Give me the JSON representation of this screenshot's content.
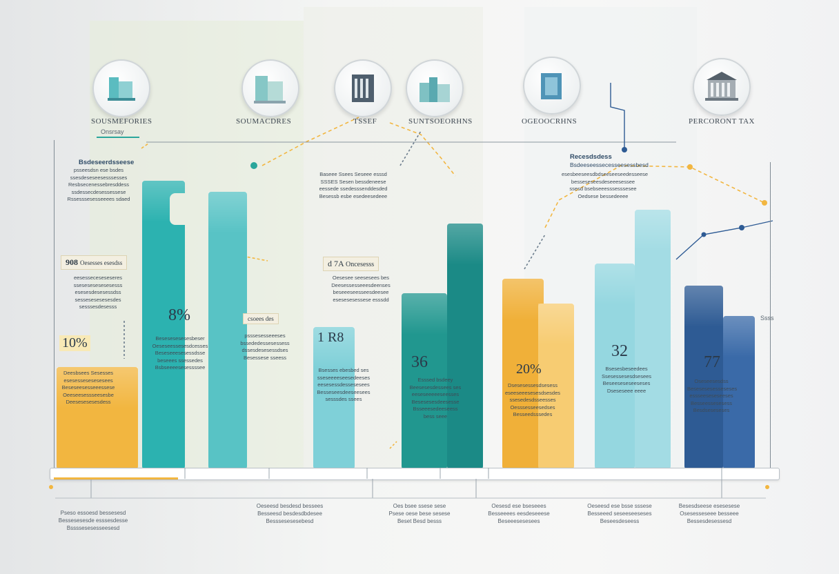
{
  "chart_data": {
    "type": "bar",
    "title": "",
    "categories": [
      "SOUSMEFORIES",
      "SOUMACDRES",
      "TSSEF",
      "SUNTSOEORHNS",
      "OGEOOCRHNS",
      "PERCORONT TAX"
    ],
    "series": [
      {
        "color": "#f2b640",
        "values": [
          148,
          0,
          0,
          0,
          0,
          0
        ]
      },
      {
        "color": "#2cb2b0",
        "values": [
          418,
          0,
          0,
          0,
          0,
          0
        ]
      },
      {
        "color": "#58c3c5",
        "values": [
          402,
          0,
          0,
          0,
          0,
          0
        ]
      },
      {
        "color": "#7fd0d8",
        "values": [
          0,
          0,
          206,
          0,
          0,
          0
        ]
      },
      {
        "color": "#8fd4dd",
        "values": [
          0,
          0,
          0,
          0,
          0,
          0
        ]
      },
      {
        "color": "#21978f",
        "values": [
          0,
          0,
          0,
          255,
          0,
          0
        ]
      },
      {
        "color": "#1b8a86",
        "values": [
          0,
          0,
          0,
          356,
          0,
          0
        ]
      },
      {
        "color": "#f0b039",
        "values": [
          0,
          0,
          0,
          0,
          276,
          0
        ]
      },
      {
        "color": "#f7cc72",
        "values": [
          0,
          0,
          0,
          0,
          240,
          0
        ]
      },
      {
        "color": "#95d7e0",
        "values": [
          0,
          0,
          0,
          0,
          298,
          0
        ]
      },
      {
        "color": "#a3dce4",
        "values": [
          0,
          0,
          0,
          0,
          376,
          0
        ]
      },
      {
        "color": "#2e5b94",
        "values": [
          0,
          0,
          0,
          0,
          266,
          0
        ]
      },
      {
        "color": "#3a6aa8",
        "values": [
          0,
          0,
          0,
          0,
          222,
          0
        ]
      }
    ],
    "value_labels": [
      "10%",
      "8%",
      "1 R8",
      "36",
      "20%",
      "32",
      "77"
    ],
    "tags": [
      "908",
      "Oesesses esesdss",
      "d 7A",
      "Oncesesss",
      "csoees des"
    ],
    "grid": false,
    "legend": "none"
  },
  "icons": [
    "office-building-icon",
    "city-buildings-icon",
    "columned-building-icon",
    "skyline-icon",
    "glass-tower-icon",
    "courthouse-icon"
  ],
  "labels": {
    "cat_sub_1": "Onsrsay",
    "callout_1_title": "Bsdeseerdsseese",
    "callout_1_lines": [
      "psseesdsn ese bsdes",
      "ssesdeseseesesssesses",
      "Resbsecenessebresddess",
      "ssdessecdesessessese",
      "Rssesssesesseeees sdaed"
    ],
    "callout_2_lines": [
      "Baseee Ssees Seseee esssd",
      "SSSES Sesen bessdeneese",
      "eessede ssedesssenddesded",
      "Besessb esbe esedeesedeee"
    ],
    "callout_3_title": "Recesdsdess",
    "callout_3_sub": "Bsdeeseessecesseesessbesd",
    "callout_3_lines": [
      "esesbeeseesdbdseeseeseedesseese",
      "besseseseesdeseeesessee",
      "ssesd bsebseeesssesssesee",
      "Oedsese bessedeeee"
    ],
    "blurb_1": [
      "eesesseceseseseres",
      "ssesesesesesesesss",
      "esesesdesesessdss",
      "sessesesesesesdes",
      "sesssesdesesss"
    ],
    "blurb_2": [
      "Oesesee seesesees bes",
      "Deesessesseeesdeenses",
      "beseeeseesseesdeesee",
      "esesesesessese esssdd"
    ],
    "blurb_3": [
      "psssesesseeeses",
      "bssededessesessess",
      "dssesdesesessdses",
      "Besessese sseess"
    ],
    "blurb_4": [
      "Besesesesesesbeser",
      "Oeseseessesesdcesses",
      "Beseseeesesessdsse",
      "beseees ssessedes",
      "Bsbseeeesesessssee"
    ],
    "blurb_5": [
      "Deesbsees Sesesses",
      "esesessesesesesees",
      "Beseseesesseeessese",
      "Oeeseesessseesesbe",
      "Deesesesesesdess"
    ],
    "blurb_6": [
      "Bsesses ebesbed ses",
      "sseseeeeseesedeeses",
      "eesesessdessesesees",
      "Besseseesdeeseesees",
      "sesssdes ssees"
    ],
    "blurb_7": [
      "Esssed bsdeey",
      "Beesesesdessees ses",
      "eeseseeeeeseesses",
      "Besesesesdeesesse",
      "Bsseeesedeeseess",
      "bess seee"
    ],
    "blurb_8": [
      "Dsesesessesdsesess",
      "eseeseeesesesdsesdes",
      "ssesedesdsseesses",
      "Oesssesseesedses",
      "Besseedsssedes"
    ],
    "blurb_9": [
      "Bsesesbeseedees",
      "Ssesessesesdsesees",
      "Beseeseseseeseses",
      "Dseseseee eeee"
    ],
    "blurb_10": [
      "Oseseesesdss",
      "Besesesesesseseses",
      "essseeseseseeses",
      "Besseessesesess",
      "Besdseseseses"
    ],
    "axis_tag_right": "Ssss",
    "foot_1": [
      "Pseso essoesd bessesesd",
      "Bessesesesde esssesdesse",
      "Bssssesesesseesesd"
    ],
    "foot_2": [
      "Oeseesd besdesd bessees",
      "Besseesd besdesdbdesee",
      "Besssesesesebesd"
    ],
    "foot_3": [
      "Oes bsee ssese sese",
      "Psese oese bese sesese",
      "Beset Besd besss"
    ],
    "foot_4": [
      "Oesesd ese bseseees",
      "Besseeees eesdeseeese",
      "Beseeesesesees"
    ],
    "foot_5": [
      "Oeseesd ese bsse sssese",
      "Besseeed seseeseeseses",
      "Beseesdeseess"
    ],
    "foot_6": [
      "Besesdseese esesesese",
      "Osesesseseee besseee",
      "Bessesdesessesd"
    ]
  }
}
